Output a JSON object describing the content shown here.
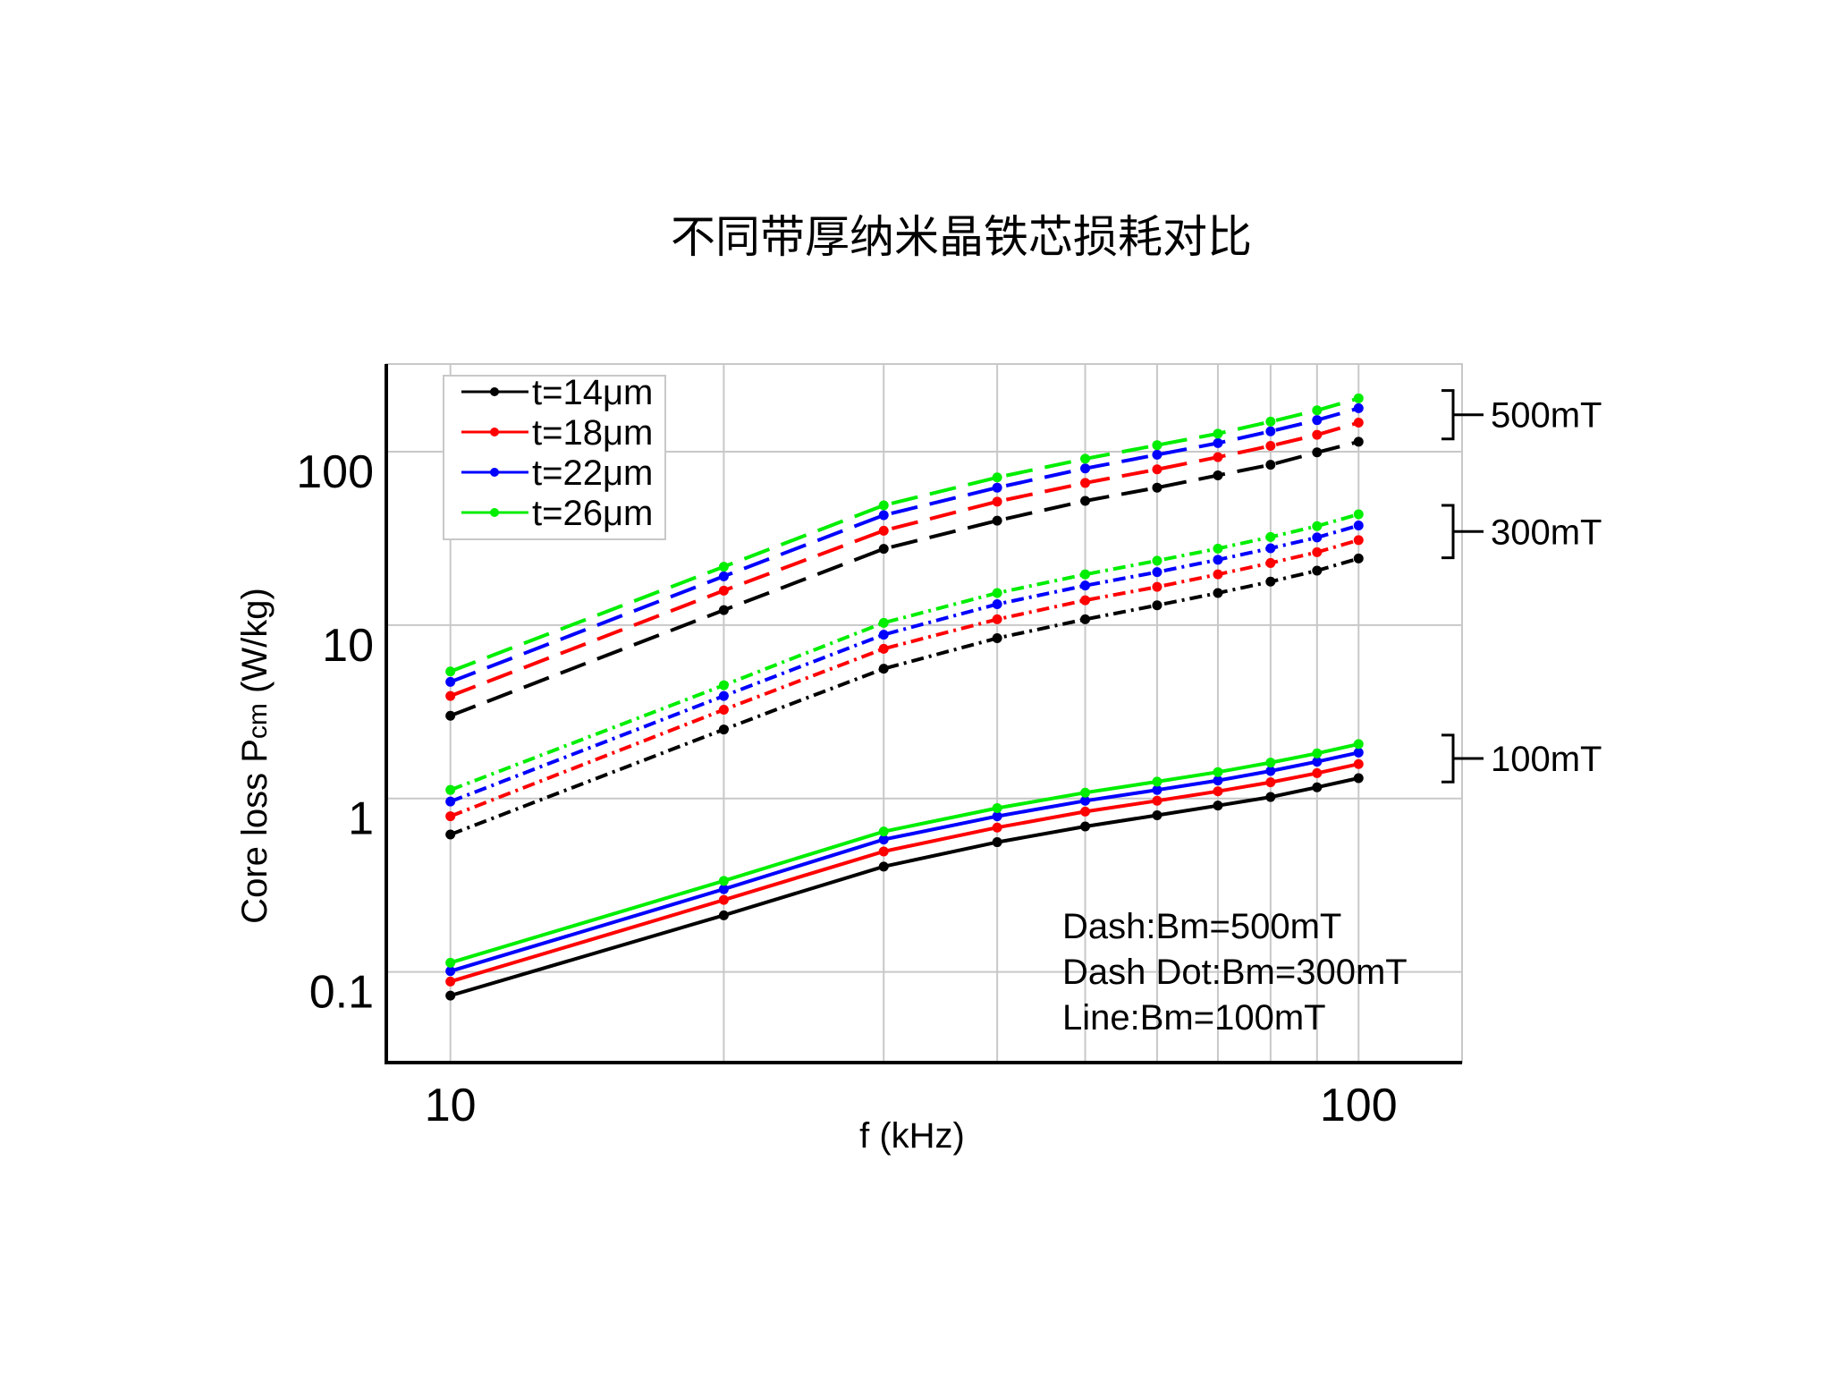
{
  "chart_data": {
    "type": "line",
    "title": "不同带厚纳米晶铁芯损耗对比",
    "xlabel": "f (kHz)",
    "ylabel_main": "Core loss P",
    "ylabel_sub": "cm",
    "ylabel_unit": " (W/kg)",
    "x_scale": "log",
    "y_scale": "log",
    "xlim": [
      8.5,
      130
    ],
    "ylim": [
      0.03,
      320
    ],
    "x_ticks": [
      10,
      100
    ],
    "x_tick_labels": [
      "10",
      "100"
    ],
    "y_ticks": [
      0.1,
      1,
      10,
      100
    ],
    "y_tick_labels": [
      "0.1",
      "1",
      "10",
      "100"
    ],
    "grid": true,
    "legend_position": "top-left",
    "x": [
      10,
      20,
      30,
      40,
      50,
      60,
      70,
      80,
      90,
      100
    ],
    "series": [
      {
        "name": "t=14μm",
        "color": "#000000",
        "style": "dash",
        "group": "500mT",
        "values": [
          3.0,
          12.2,
          27.5,
          40.0,
          52.0,
          62.0,
          73.0,
          84.0,
          99.0,
          114.0
        ]
      },
      {
        "name": "t=18μm",
        "color": "#ff0000",
        "style": "dash",
        "group": "500mT",
        "values": [
          3.9,
          15.8,
          35.0,
          51.5,
          66.0,
          79.0,
          93.0,
          108.0,
          125.0,
          147.0
        ]
      },
      {
        "name": "t=22μm",
        "color": "#0000ff",
        "style": "dash",
        "group": "500mT",
        "values": [
          4.7,
          19.1,
          43.0,
          62.0,
          80.0,
          96.0,
          112.0,
          131.0,
          152.0,
          178.0
        ]
      },
      {
        "name": "t=26μm",
        "color": "#00ee00",
        "style": "dash",
        "group": "500mT",
        "values": [
          5.4,
          21.7,
          49.0,
          71.0,
          91.0,
          109.0,
          127.0,
          149.0,
          173.0,
          203.0
        ]
      },
      {
        "name": "t=14μm",
        "color": "#000000",
        "style": "dashdot",
        "group": "300mT",
        "values": [
          0.62,
          2.5,
          5.6,
          8.4,
          10.8,
          13.0,
          15.3,
          17.8,
          20.6,
          24.2
        ]
      },
      {
        "name": "t=18μm",
        "color": "#ff0000",
        "style": "dashdot",
        "group": "300mT",
        "values": [
          0.79,
          3.25,
          7.3,
          10.8,
          13.9,
          16.6,
          19.6,
          22.8,
          26.3,
          30.9
        ]
      },
      {
        "name": "t=22μm",
        "color": "#0000ff",
        "style": "dashdot",
        "group": "300mT",
        "values": [
          0.96,
          3.9,
          8.8,
          13.2,
          16.9,
          20.2,
          23.8,
          27.7,
          32.0,
          37.5
        ]
      },
      {
        "name": "t=26μm",
        "color": "#00ee00",
        "style": "dashdot",
        "group": "300mT",
        "values": [
          1.12,
          4.5,
          10.3,
          15.3,
          19.6,
          23.5,
          27.6,
          32.2,
          37.2,
          43.5
        ]
      },
      {
        "name": "t=14μm",
        "color": "#000000",
        "style": "solid",
        "group": "100mT",
        "values": [
          0.073,
          0.212,
          0.405,
          0.56,
          0.69,
          0.8,
          0.91,
          1.02,
          1.16,
          1.31
        ]
      },
      {
        "name": "t=18μm",
        "color": "#ff0000",
        "style": "solid",
        "group": "100mT",
        "values": [
          0.088,
          0.26,
          0.495,
          0.68,
          0.84,
          0.97,
          1.1,
          1.24,
          1.4,
          1.58
        ]
      },
      {
        "name": "t=22μm",
        "color": "#0000ff",
        "style": "solid",
        "group": "100mT",
        "values": [
          0.101,
          0.3,
          0.58,
          0.79,
          0.97,
          1.12,
          1.27,
          1.44,
          1.63,
          1.84
        ]
      },
      {
        "name": "t=26μm",
        "color": "#00ee00",
        "style": "solid",
        "group": "100mT",
        "values": [
          0.113,
          0.335,
          0.645,
          0.88,
          1.08,
          1.25,
          1.42,
          1.61,
          1.82,
          2.06
        ]
      }
    ],
    "legend": [
      {
        "label": "t=14μm",
        "color": "#000000"
      },
      {
        "label": "t=18μm",
        "color": "#ff0000"
      },
      {
        "label": "t=22μm",
        "color": "#0000ff"
      },
      {
        "label": "t=26μm",
        "color": "#00ee00"
      }
    ],
    "group_labels": [
      {
        "label": "500mT",
        "low": 150,
        "high": 200
      },
      {
        "label": "300mT",
        "low": 31,
        "high": 43.5
      },
      {
        "label": "100mT",
        "low": 1.58,
        "high": 2.06
      }
    ],
    "annotations": [
      "Dash:Bm=500mT",
      "Dash Dot:Bm=300mT",
      "Line:Bm=100mT"
    ]
  }
}
